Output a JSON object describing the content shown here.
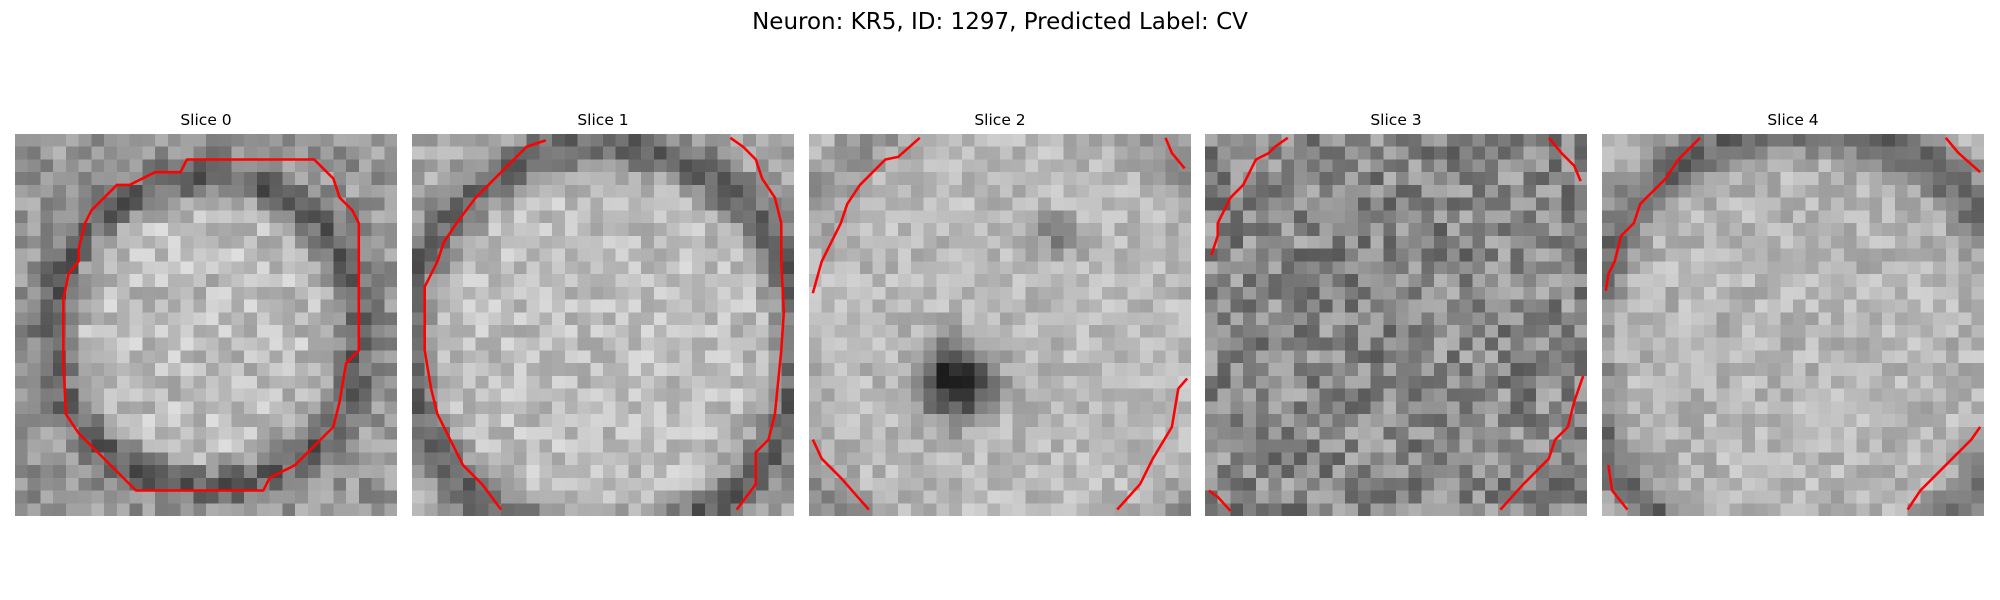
{
  "figure": {
    "title": "Neuron: KR5, ID: 1297, Predicted Label: CV"
  },
  "colors": {
    "contour": "#ff0000",
    "colormap": "grayscale"
  },
  "panels": [
    {
      "title": "Slice 0"
    },
    {
      "title": "Slice 1"
    },
    {
      "title": "Slice 2"
    },
    {
      "title": "Slice 3"
    },
    {
      "title": "Slice 4"
    }
  ]
}
